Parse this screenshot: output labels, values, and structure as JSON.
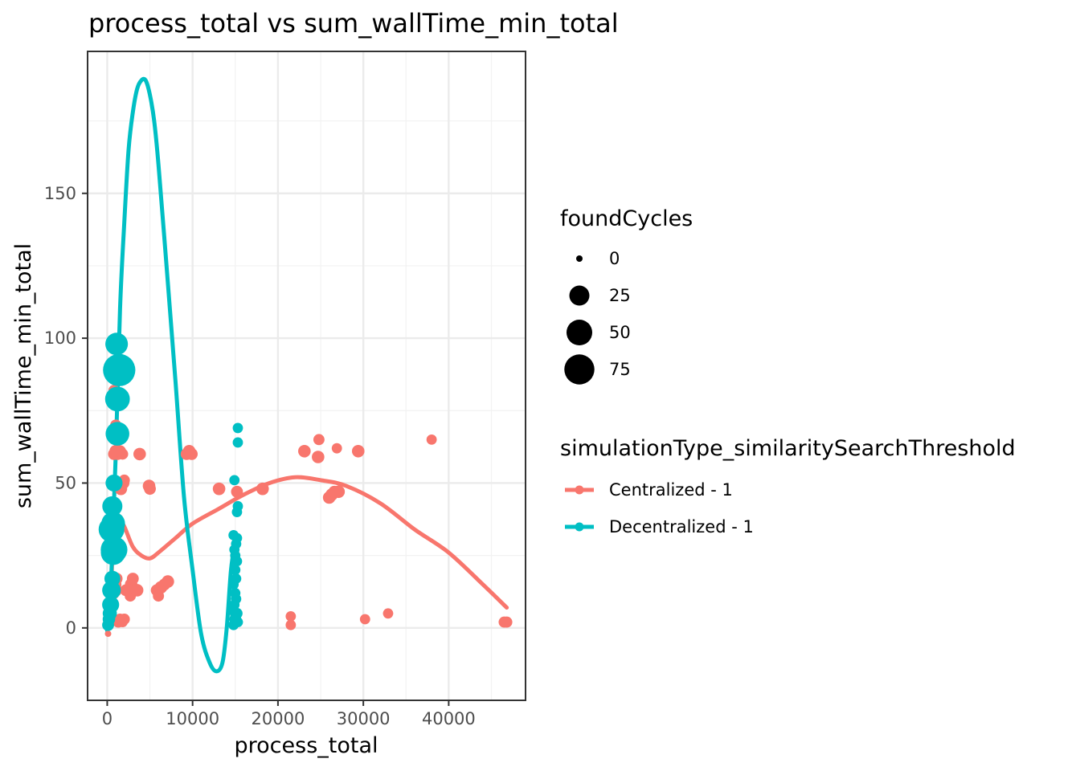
{
  "chart_data": {
    "type": "scatter",
    "title": "process_total  vs  sum_wallTime_min_total",
    "xlabel": "process_total",
    "ylabel": "sum_wallTime_min_total",
    "xlim": [
      -2300,
      49000
    ],
    "ylim": [
      -25,
      199
    ],
    "x_ticks": [
      0,
      10000,
      20000,
      30000,
      40000
    ],
    "x_tick_labels": [
      "0",
      "10000",
      "20000",
      "30000",
      "40000"
    ],
    "y_ticks": [
      0,
      50,
      100,
      150
    ],
    "y_tick_labels": [
      "0",
      "50",
      "100",
      "150"
    ],
    "grid": true,
    "legend_position": "right",
    "size_legend": {
      "title": "foundCycles",
      "entries": [
        {
          "label": "0",
          "value": 0
        },
        {
          "label": "25",
          "value": 25
        },
        {
          "label": "50",
          "value": 50
        },
        {
          "label": "75",
          "value": 75
        }
      ]
    },
    "color_legend": {
      "title": "simulationType_similaritySearchThreshold",
      "entries": [
        {
          "label": "Centralized - 1",
          "color": "#F8766D"
        },
        {
          "label": "Decentralized - 1",
          "color": "#00BFC4"
        }
      ]
    },
    "series": [
      {
        "name": "Centralized - 1",
        "color": "#F8766D",
        "points": [
          [
            100,
            -2,
            0
          ],
          [
            200,
            1,
            2
          ],
          [
            400,
            3,
            3
          ],
          [
            600,
            8,
            4
          ],
          [
            700,
            12,
            5
          ],
          [
            900,
            15,
            6
          ],
          [
            1000,
            13,
            5
          ],
          [
            1100,
            17,
            4
          ],
          [
            1300,
            2,
            3
          ],
          [
            1500,
            3,
            3
          ],
          [
            1800,
            2,
            2
          ],
          [
            2000,
            3,
            3
          ],
          [
            2200,
            13,
            4
          ],
          [
            2800,
            15,
            5
          ],
          [
            3000,
            17,
            4
          ],
          [
            2700,
            11,
            3
          ],
          [
            3500,
            13,
            5
          ],
          [
            800,
            60,
            4
          ],
          [
            1000,
            61,
            5
          ],
          [
            1200,
            60,
            4
          ],
          [
            1500,
            61,
            4
          ],
          [
            1800,
            60,
            3
          ],
          [
            3800,
            60,
            5
          ],
          [
            1600,
            48,
            5
          ],
          [
            1900,
            50,
            4
          ],
          [
            2000,
            51,
            3
          ],
          [
            4900,
            49,
            5
          ],
          [
            5000,
            48,
            4
          ],
          [
            5800,
            13,
            4
          ],
          [
            6000,
            11,
            3
          ],
          [
            6300,
            14,
            5
          ],
          [
            6700,
            15,
            4
          ],
          [
            7100,
            16,
            5
          ],
          [
            9300,
            60,
            4
          ],
          [
            9600,
            61,
            5
          ],
          [
            9900,
            60,
            4
          ],
          [
            13100,
            48,
            5
          ],
          [
            15200,
            47,
            4
          ],
          [
            18200,
            48,
            5
          ],
          [
            21500,
            4,
            2
          ],
          [
            21500,
            1,
            2
          ],
          [
            23100,
            61,
            5
          ],
          [
            24700,
            59,
            5
          ],
          [
            24800,
            65,
            3
          ],
          [
            26000,
            45,
            5
          ],
          [
            26300,
            46,
            5
          ],
          [
            26600,
            47,
            4
          ],
          [
            26900,
            62,
            2
          ],
          [
            27100,
            47,
            5
          ],
          [
            29400,
            61,
            5
          ],
          [
            30200,
            3,
            2
          ],
          [
            32900,
            5,
            2
          ],
          [
            38000,
            65,
            2
          ],
          [
            46500,
            2,
            3
          ],
          [
            46800,
            2,
            3
          ],
          [
            900,
            80,
            3
          ],
          [
            1000,
            70,
            3
          ],
          [
            800,
            82,
            3
          ],
          [
            700,
            37,
            4
          ],
          [
            500,
            25,
            4
          ]
        ]
      },
      {
        "name": "Decentralized - 1",
        "color": "#00BFC4",
        "points": [
          [
            100,
            1,
            4
          ],
          [
            200,
            3,
            5
          ],
          [
            300,
            5,
            8
          ],
          [
            400,
            8,
            15
          ],
          [
            500,
            13,
            20
          ],
          [
            600,
            17,
            12
          ],
          [
            700,
            26,
            45
          ],
          [
            800,
            27,
            55
          ],
          [
            500,
            34,
            50
          ],
          [
            700,
            36,
            40
          ],
          [
            600,
            42,
            25
          ],
          [
            800,
            50,
            15
          ],
          [
            1200,
            67,
            40
          ],
          [
            1200,
            79,
            45
          ],
          [
            1400,
            89,
            90
          ],
          [
            1100,
            98,
            35
          ],
          [
            14800,
            1,
            2
          ],
          [
            14900,
            3,
            2
          ],
          [
            15000,
            4,
            2
          ],
          [
            15200,
            5,
            3
          ],
          [
            14900,
            8,
            2
          ],
          [
            15100,
            10,
            2
          ],
          [
            15000,
            12,
            2
          ],
          [
            14800,
            15,
            2
          ],
          [
            15100,
            17,
            2
          ],
          [
            15000,
            20,
            2
          ],
          [
            15200,
            23,
            2
          ],
          [
            14900,
            27,
            2
          ],
          [
            15100,
            29,
            2
          ],
          [
            15200,
            31,
            2
          ],
          [
            14800,
            32,
            2
          ],
          [
            15200,
            40,
            2
          ],
          [
            15300,
            42,
            2
          ],
          [
            14900,
            51,
            2
          ],
          [
            15300,
            64,
            2
          ],
          [
            15300,
            69,
            2
          ],
          [
            15000,
            25,
            2
          ],
          [
            15300,
            2,
            2
          ],
          [
            14700,
            6,
            2
          ],
          [
            15100,
            3,
            2
          ]
        ]
      }
    ],
    "smooth_lines": [
      {
        "name": "Centralized - 1",
        "color": "#F8766D",
        "points": [
          [
            400,
            0
          ],
          [
            600,
            25
          ],
          [
            1000,
            37
          ],
          [
            1300,
            38
          ],
          [
            2000,
            35
          ],
          [
            3000,
            28
          ],
          [
            4000,
            25
          ],
          [
            5000,
            24
          ],
          [
            6000,
            26
          ],
          [
            8000,
            31
          ],
          [
            10000,
            36
          ],
          [
            13000,
            41
          ],
          [
            16000,
            46
          ],
          [
            19000,
            50
          ],
          [
            22000,
            52
          ],
          [
            25000,
            51
          ],
          [
            28000,
            49
          ],
          [
            32000,
            43
          ],
          [
            36000,
            34
          ],
          [
            40000,
            26
          ],
          [
            44000,
            15
          ],
          [
            46800,
            7
          ]
        ]
      },
      {
        "name": "Decentralized - 1",
        "color": "#00BFC4",
        "points": [
          [
            0,
            -1
          ],
          [
            500,
            20
          ],
          [
            1000,
            60
          ],
          [
            1500,
            110
          ],
          [
            2000,
            140
          ],
          [
            2500,
            165
          ],
          [
            3000,
            178
          ],
          [
            3500,
            186
          ],
          [
            4000,
            189
          ],
          [
            4500,
            189
          ],
          [
            5000,
            184
          ],
          [
            5500,
            175
          ],
          [
            6000,
            160
          ],
          [
            7000,
            123
          ],
          [
            8000,
            85
          ],
          [
            9000,
            45
          ],
          [
            10000,
            20
          ],
          [
            11000,
            -2
          ],
          [
            12000,
            -12
          ],
          [
            12800,
            -15
          ],
          [
            13500,
            -12
          ],
          [
            14000,
            0
          ],
          [
            14500,
            20
          ],
          [
            15000,
            30
          ]
        ]
      }
    ]
  }
}
